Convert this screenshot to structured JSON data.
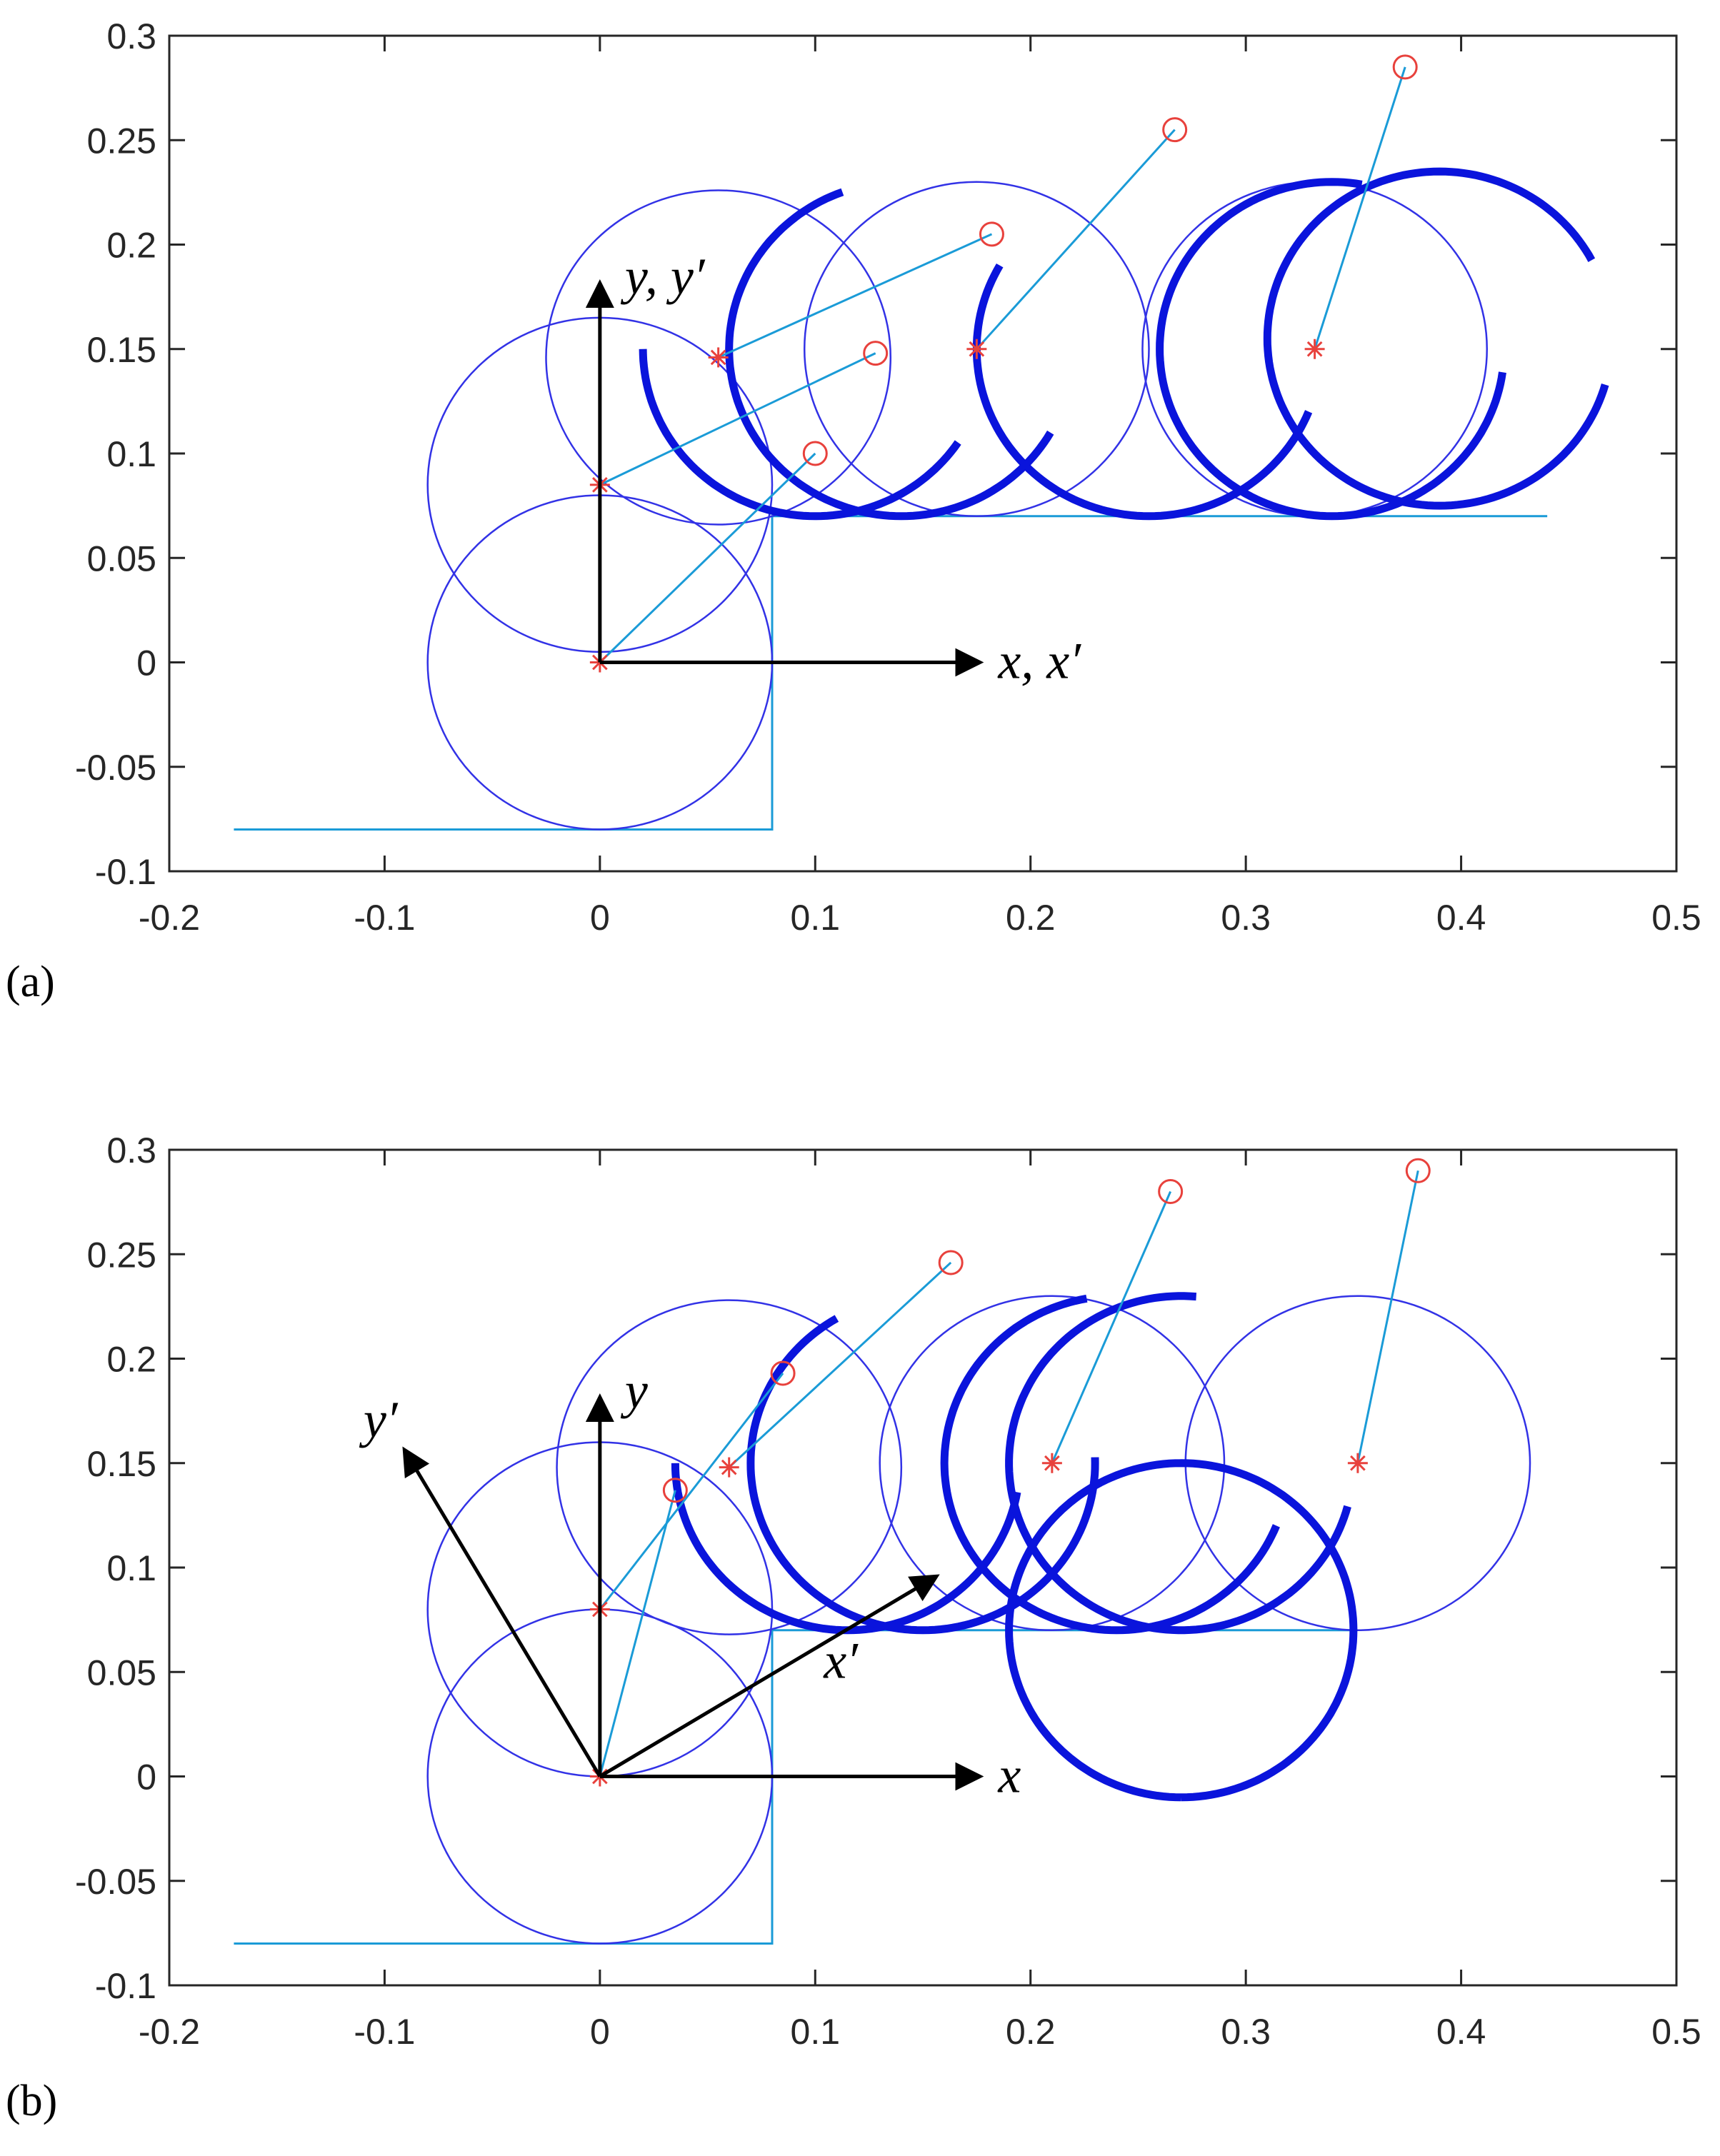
{
  "chart_data": [
    {
      "type": "line",
      "panel_label": "(a)",
      "xlim": [
        -0.2,
        0.5
      ],
      "ylim": [
        -0.1,
        0.3
      ],
      "xticks": [
        -0.2,
        -0.1,
        0,
        0.1,
        0.2,
        0.3,
        0.4,
        0.5
      ],
      "yticks": [
        -0.1,
        -0.05,
        0,
        0.05,
        0.1,
        0.15,
        0.2,
        0.25,
        0.3
      ],
      "xtick_labels": [
        "-0.2",
        "-0.1",
        "0",
        "0.1",
        "0.2",
        "0.3",
        "0.4",
        "0.5"
      ],
      "ytick_labels": [
        "-0.1",
        "-0.05",
        "0",
        "0.05",
        "0.1",
        "0.15",
        "0.2",
        "0.25",
        "0.3"
      ],
      "grid": false,
      "step_outline": [
        [
          -0.17,
          -0.08
        ],
        [
          0.08,
          -0.08
        ],
        [
          0.08,
          0.07
        ],
        [
          0.44,
          0.07
        ]
      ],
      "circles": [
        {
          "cx": 0,
          "cy": 0,
          "r": 0.08
        },
        {
          "cx": 0,
          "cy": 0.085,
          "r": 0.08
        },
        {
          "cx": 0.055,
          "cy": 0.146,
          "r": 0.08
        },
        {
          "cx": 0.175,
          "cy": 0.15,
          "r": 0.08
        },
        {
          "cx": 0.332,
          "cy": 0.15,
          "r": 0.08
        }
      ],
      "centers": [
        [
          0,
          0
        ],
        [
          0,
          0.085
        ],
        [
          0.055,
          0.146
        ],
        [
          0.175,
          0.15
        ],
        [
          0.332,
          0.15
        ]
      ],
      "tips": [
        [
          0.1,
          0.1
        ],
        [
          0.128,
          0.148
        ],
        [
          0.182,
          0.205
        ],
        [
          0.267,
          0.255
        ],
        [
          0.374,
          0.285
        ]
      ],
      "links": [
        [
          [
            0,
            0
          ],
          [
            0.1,
            0.1
          ]
        ],
        [
          [
            0,
            0.085
          ],
          [
            0.128,
            0.148
          ]
        ],
        [
          [
            0.055,
            0.146
          ],
          [
            0.182,
            0.205
          ]
        ],
        [
          [
            0.175,
            0.15
          ],
          [
            0.267,
            0.255
          ]
        ],
        [
          [
            0.332,
            0.15
          ],
          [
            0.374,
            0.285
          ]
        ]
      ],
      "trajectories": [
        {
          "cx": 0.1,
          "cy": 0.15,
          "r": 0.08,
          "t1_deg": 180,
          "t2_deg": 327
        },
        {
          "cx": 0.14,
          "cy": 0.15,
          "r": 0.08,
          "t1_deg": 110,
          "t2_deg": 330
        },
        {
          "cx": 0.255,
          "cy": 0.15,
          "r": 0.08,
          "t1_deg": 150,
          "t2_deg": 339
        },
        {
          "cx": 0.34,
          "cy": 0.15,
          "r": 0.08,
          "t1_deg": 80,
          "t2_deg": 352
        },
        {
          "cx": 0.39,
          "cy": 0.155,
          "r": 0.08,
          "t1_deg": 28,
          "t2_deg": 345
        }
      ],
      "frame_origin": [
        0,
        0
      ],
      "frame_axes": [
        {
          "to": [
            0.175,
            0
          ],
          "label": "x, x′"
        },
        {
          "to": [
            0,
            0.18
          ],
          "label": "y, y′"
        }
      ]
    },
    {
      "type": "line",
      "panel_label": "(b)",
      "xlim": [
        -0.2,
        0.5
      ],
      "ylim": [
        -0.1,
        0.3
      ],
      "xticks": [
        -0.2,
        -0.1,
        0,
        0.1,
        0.2,
        0.3,
        0.4,
        0.5
      ],
      "yticks": [
        -0.1,
        -0.05,
        0,
        0.05,
        0.1,
        0.15,
        0.2,
        0.25,
        0.3
      ],
      "xtick_labels": [
        "-0.2",
        "-0.1",
        "0",
        "0.1",
        "0.2",
        "0.3",
        "0.4",
        "0.5"
      ],
      "ytick_labels": [
        "-0.1",
        "-0.05",
        "0",
        "0.05",
        "0.1",
        "0.15",
        "0.2",
        "0.25",
        "0.3"
      ],
      "grid": false,
      "step_outline": [
        [
          -0.17,
          -0.08
        ],
        [
          0.08,
          -0.08
        ],
        [
          0.08,
          0.07
        ],
        [
          0.35,
          0.07
        ]
      ],
      "circles": [
        {
          "cx": 0,
          "cy": 0,
          "r": 0.08
        },
        {
          "cx": 0,
          "cy": 0.08,
          "r": 0.08
        },
        {
          "cx": 0.06,
          "cy": 0.148,
          "r": 0.08
        },
        {
          "cx": 0.21,
          "cy": 0.15,
          "r": 0.08
        },
        {
          "cx": 0.352,
          "cy": 0.15,
          "r": 0.08
        }
      ],
      "centers": [
        [
          0,
          0
        ],
        [
          0,
          0.08
        ],
        [
          0.06,
          0.148
        ],
        [
          0.21,
          0.15
        ],
        [
          0.352,
          0.15
        ]
      ],
      "tips": [
        [
          0.035,
          0.137
        ],
        [
          0.085,
          0.193
        ],
        [
          0.163,
          0.246
        ],
        [
          0.265,
          0.28
        ],
        [
          0.38,
          0.29
        ]
      ],
      "links": [
        [
          [
            0,
            0
          ],
          [
            0.035,
            0.137
          ]
        ],
        [
          [
            0,
            0.08
          ],
          [
            0.085,
            0.193
          ]
        ],
        [
          [
            0.06,
            0.148
          ],
          [
            0.163,
            0.246
          ]
        ],
        [
          [
            0.21,
            0.15
          ],
          [
            0.265,
            0.28
          ]
        ],
        [
          [
            0.352,
            0.15
          ],
          [
            0.38,
            0.29
          ]
        ]
      ],
      "trajectories": [
        {
          "cx": 0.115,
          "cy": 0.15,
          "r": 0.08,
          "t1_deg": 180,
          "t2_deg": 350
        },
        {
          "cx": 0.15,
          "cy": 0.15,
          "r": 0.08,
          "t1_deg": 120,
          "t2_deg": 2
        },
        {
          "cx": 0.24,
          "cy": 0.15,
          "r": 0.08,
          "t1_deg": 100,
          "t2_deg": 338
        },
        {
          "cx": 0.27,
          "cy": 0.15,
          "r": 0.08,
          "t1_deg": 85,
          "t2_deg": 345
        },
        {
          "cx": 0.27,
          "cy": 0.07,
          "r": 0.08,
          "t1_deg": 270,
          "t2_deg": 270
        }
      ],
      "frame_origin": [
        0,
        0
      ],
      "frame_axes": [
        {
          "to": [
            0.175,
            0
          ],
          "label": "x"
        },
        {
          "to": [
            0,
            0.18
          ],
          "label": "y"
        },
        {
          "to": [
            0.155,
            0.095
          ],
          "label": "x′"
        },
        {
          "to": [
            -0.09,
            0.155
          ],
          "label": "y′"
        }
      ]
    }
  ],
  "colors": {
    "circle": "#3232e6",
    "trajectory": "#0a14dc",
    "link": "#1a9bd7",
    "center_marker": "#e8413c",
    "tip_marker": "#e8413c",
    "frame_arrow": "#000000",
    "axes": "#262626"
  }
}
